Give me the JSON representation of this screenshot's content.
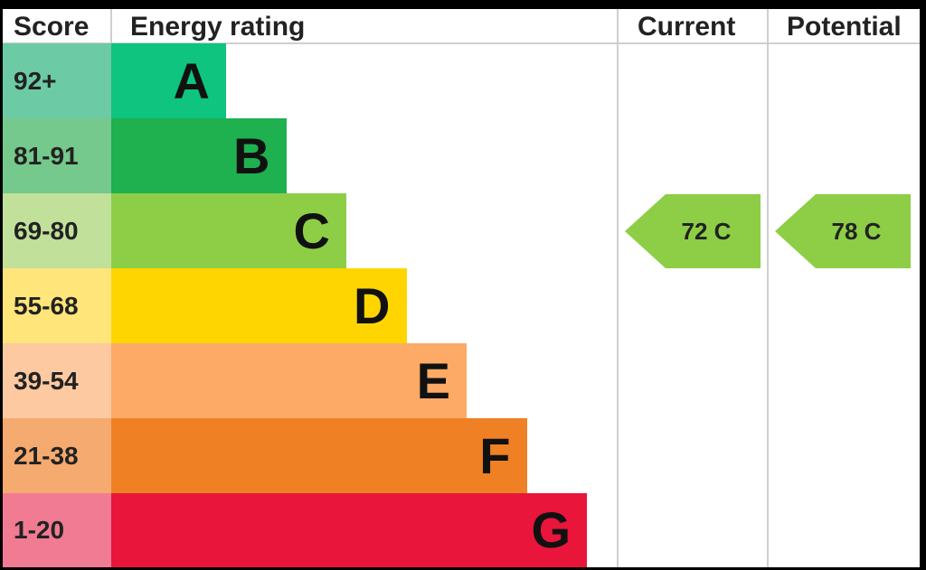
{
  "headers": {
    "score": "Score",
    "rating": "Energy rating",
    "current": "Current",
    "potential": "Potential"
  },
  "chart_data": {
    "type": "bar",
    "title": "",
    "bands": [
      {
        "score": "92+",
        "letter": "A",
        "band_order": 1,
        "color": "#0ec47f",
        "score_bg": "#6ccaa5"
      },
      {
        "score": "81-91",
        "letter": "B",
        "band_order": 2,
        "color": "#1fb050",
        "score_bg": "#75c98c"
      },
      {
        "score": "69-80",
        "letter": "C",
        "band_order": 3,
        "color": "#8dce46",
        "score_bg": "#c1e19a"
      },
      {
        "score": "55-68",
        "letter": "D",
        "band_order": 4,
        "color": "#ffd500",
        "score_bg": "#ffe57a"
      },
      {
        "score": "39-54",
        "letter": "E",
        "band_order": 5,
        "color": "#fcaa65",
        "score_bg": "#fdc9a0"
      },
      {
        "score": "21-38",
        "letter": "F",
        "band_order": 6,
        "color": "#ef8023",
        "score_bg": "#f5aa70"
      },
      {
        "score": "1-20",
        "letter": "G",
        "band_order": 7,
        "color": "#e9153b",
        "score_bg": "#f07b92"
      }
    ],
    "current": {
      "value": 72,
      "letter": "C",
      "label": "72  C",
      "color": "#8dce46"
    },
    "potential": {
      "value": 78,
      "letter": "C",
      "label": "78  C",
      "color": "#8dce46"
    }
  }
}
